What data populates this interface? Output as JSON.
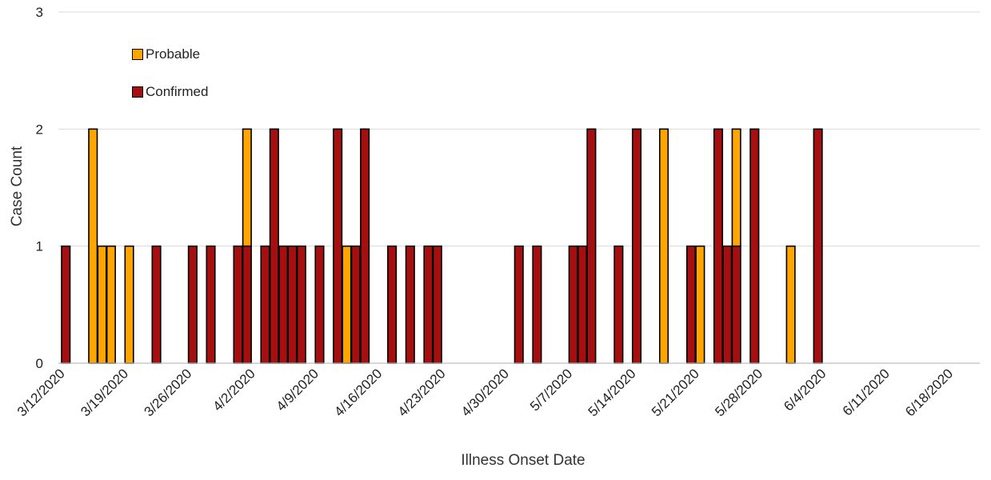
{
  "chart_data": {
    "type": "bar",
    "stacked": true,
    "xlabel": "Illness Onset Date",
    "ylabel": "Case Count",
    "ylim": [
      0,
      3
    ],
    "yticks": [
      0,
      1,
      2,
      3
    ],
    "grid": true,
    "legend_position": "top-left",
    "x_start": "3/12/2020",
    "xticks": [
      "3/12/2020",
      "3/19/2020",
      "3/26/2020",
      "4/2/2020",
      "4/9/2020",
      "4/16/2020",
      "4/23/2020",
      "4/30/2020",
      "5/7/2020",
      "5/14/2020",
      "5/21/2020",
      "5/28/2020",
      "6/4/2020",
      "6/11/2020",
      "6/18/2020"
    ],
    "series": [
      {
        "name": "Confirmed",
        "color": "#A50F0F",
        "points": [
          {
            "date": "3/12/2020",
            "value": 1
          },
          {
            "date": "3/22/2020",
            "value": 1
          },
          {
            "date": "3/26/2020",
            "value": 1
          },
          {
            "date": "3/28/2020",
            "value": 1
          },
          {
            "date": "3/31/2020",
            "value": 1
          },
          {
            "date": "4/1/2020",
            "value": 1
          },
          {
            "date": "4/3/2020",
            "value": 1
          },
          {
            "date": "4/4/2020",
            "value": 2
          },
          {
            "date": "4/5/2020",
            "value": 1
          },
          {
            "date": "4/6/2020",
            "value": 1
          },
          {
            "date": "4/7/2020",
            "value": 1
          },
          {
            "date": "4/9/2020",
            "value": 1
          },
          {
            "date": "4/11/2020",
            "value": 2
          },
          {
            "date": "4/13/2020",
            "value": 1
          },
          {
            "date": "4/14/2020",
            "value": 2
          },
          {
            "date": "4/17/2020",
            "value": 1
          },
          {
            "date": "4/19/2020",
            "value": 1
          },
          {
            "date": "4/21/2020",
            "value": 1
          },
          {
            "date": "4/22/2020",
            "value": 1
          },
          {
            "date": "5/1/2020",
            "value": 1
          },
          {
            "date": "5/3/2020",
            "value": 1
          },
          {
            "date": "5/7/2020",
            "value": 1
          },
          {
            "date": "5/8/2020",
            "value": 1
          },
          {
            "date": "5/9/2020",
            "value": 2
          },
          {
            "date": "5/12/2020",
            "value": 1
          },
          {
            "date": "5/14/2020",
            "value": 2
          },
          {
            "date": "5/20/2020",
            "value": 1
          },
          {
            "date": "5/23/2020",
            "value": 2
          },
          {
            "date": "5/24/2020",
            "value": 1
          },
          {
            "date": "5/25/2020",
            "value": 1
          },
          {
            "date": "5/27/2020",
            "value": 2
          },
          {
            "date": "6/3/2020",
            "value": 2
          }
        ]
      },
      {
        "name": "Probable",
        "color": "#FFA500",
        "points": [
          {
            "date": "3/15/2020",
            "value": 2
          },
          {
            "date": "3/16/2020",
            "value": 1
          },
          {
            "date": "3/17/2020",
            "value": 1
          },
          {
            "date": "3/19/2020",
            "value": 1
          },
          {
            "date": "4/1/2020",
            "value": 1
          },
          {
            "date": "4/12/2020",
            "value": 1
          },
          {
            "date": "5/17/2020",
            "value": 2
          },
          {
            "date": "5/21/2020",
            "value": 1
          },
          {
            "date": "5/25/2020",
            "value": 1
          },
          {
            "date": "5/31/2020",
            "value": 1
          }
        ]
      }
    ]
  }
}
